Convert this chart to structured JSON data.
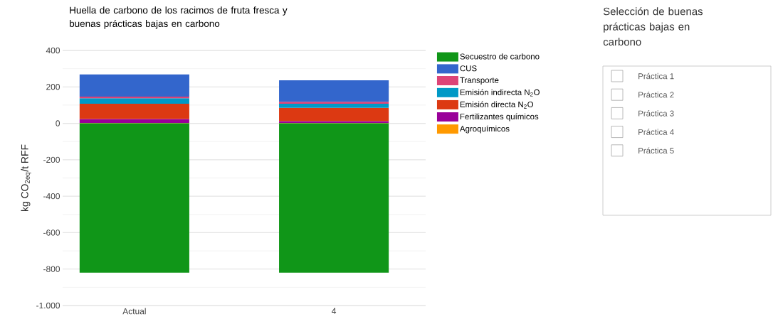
{
  "chart_data": [
    {
      "type": "bar",
      "title": "Huella de carbono de los racimos de fruta fresca y buenas prácticas bajas en carbono",
      "ylabel": "kg CO$_{2eq}$/t RFF",
      "categories": [
        "Actual",
        "4"
      ],
      "stacked": true,
      "series": [
        {
          "name": "Agroquímicos",
          "color": "#ff9900",
          "values": [
            2,
            2
          ]
        },
        {
          "name": "Fertilizantes químicos",
          "color": "#990099",
          "values": [
            22,
            10
          ]
        },
        {
          "name": "Emisión directa N$_{2}$O",
          "color": "#dc3912",
          "values": [
            84,
            73
          ]
        },
        {
          "name": "Emisión indirecta N$_{2}$O",
          "color": "#0099c6",
          "values": [
            30,
            23
          ]
        },
        {
          "name": "Transporte",
          "color": "#dd4477",
          "values": [
            9,
            10
          ]
        },
        {
          "name": "CUS",
          "color": "#3366cc",
          "values": [
            121,
            118
          ]
        },
        {
          "name": "Secuestro de carbono",
          "color": "#109618",
          "values": [
            -820,
            -820
          ]
        }
      ],
      "ylim": [
        -1000,
        400
      ],
      "yticks": [
        {
          "value": -1000,
          "label": "-1.000"
        },
        -800,
        -600,
        -400,
        -200,
        0,
        200,
        400
      ],
      "grid": "y",
      "legend": "right"
    },
    {
      "type": "other",
      "title": "Selección de buenas prácticas bajas en carbono",
      "annotations": [
        "Práctica 1",
        "Práctica 2",
        "Práctica 3",
        "Práctica 4",
        "Práctica 5"
      ]
    }
  ]
}
